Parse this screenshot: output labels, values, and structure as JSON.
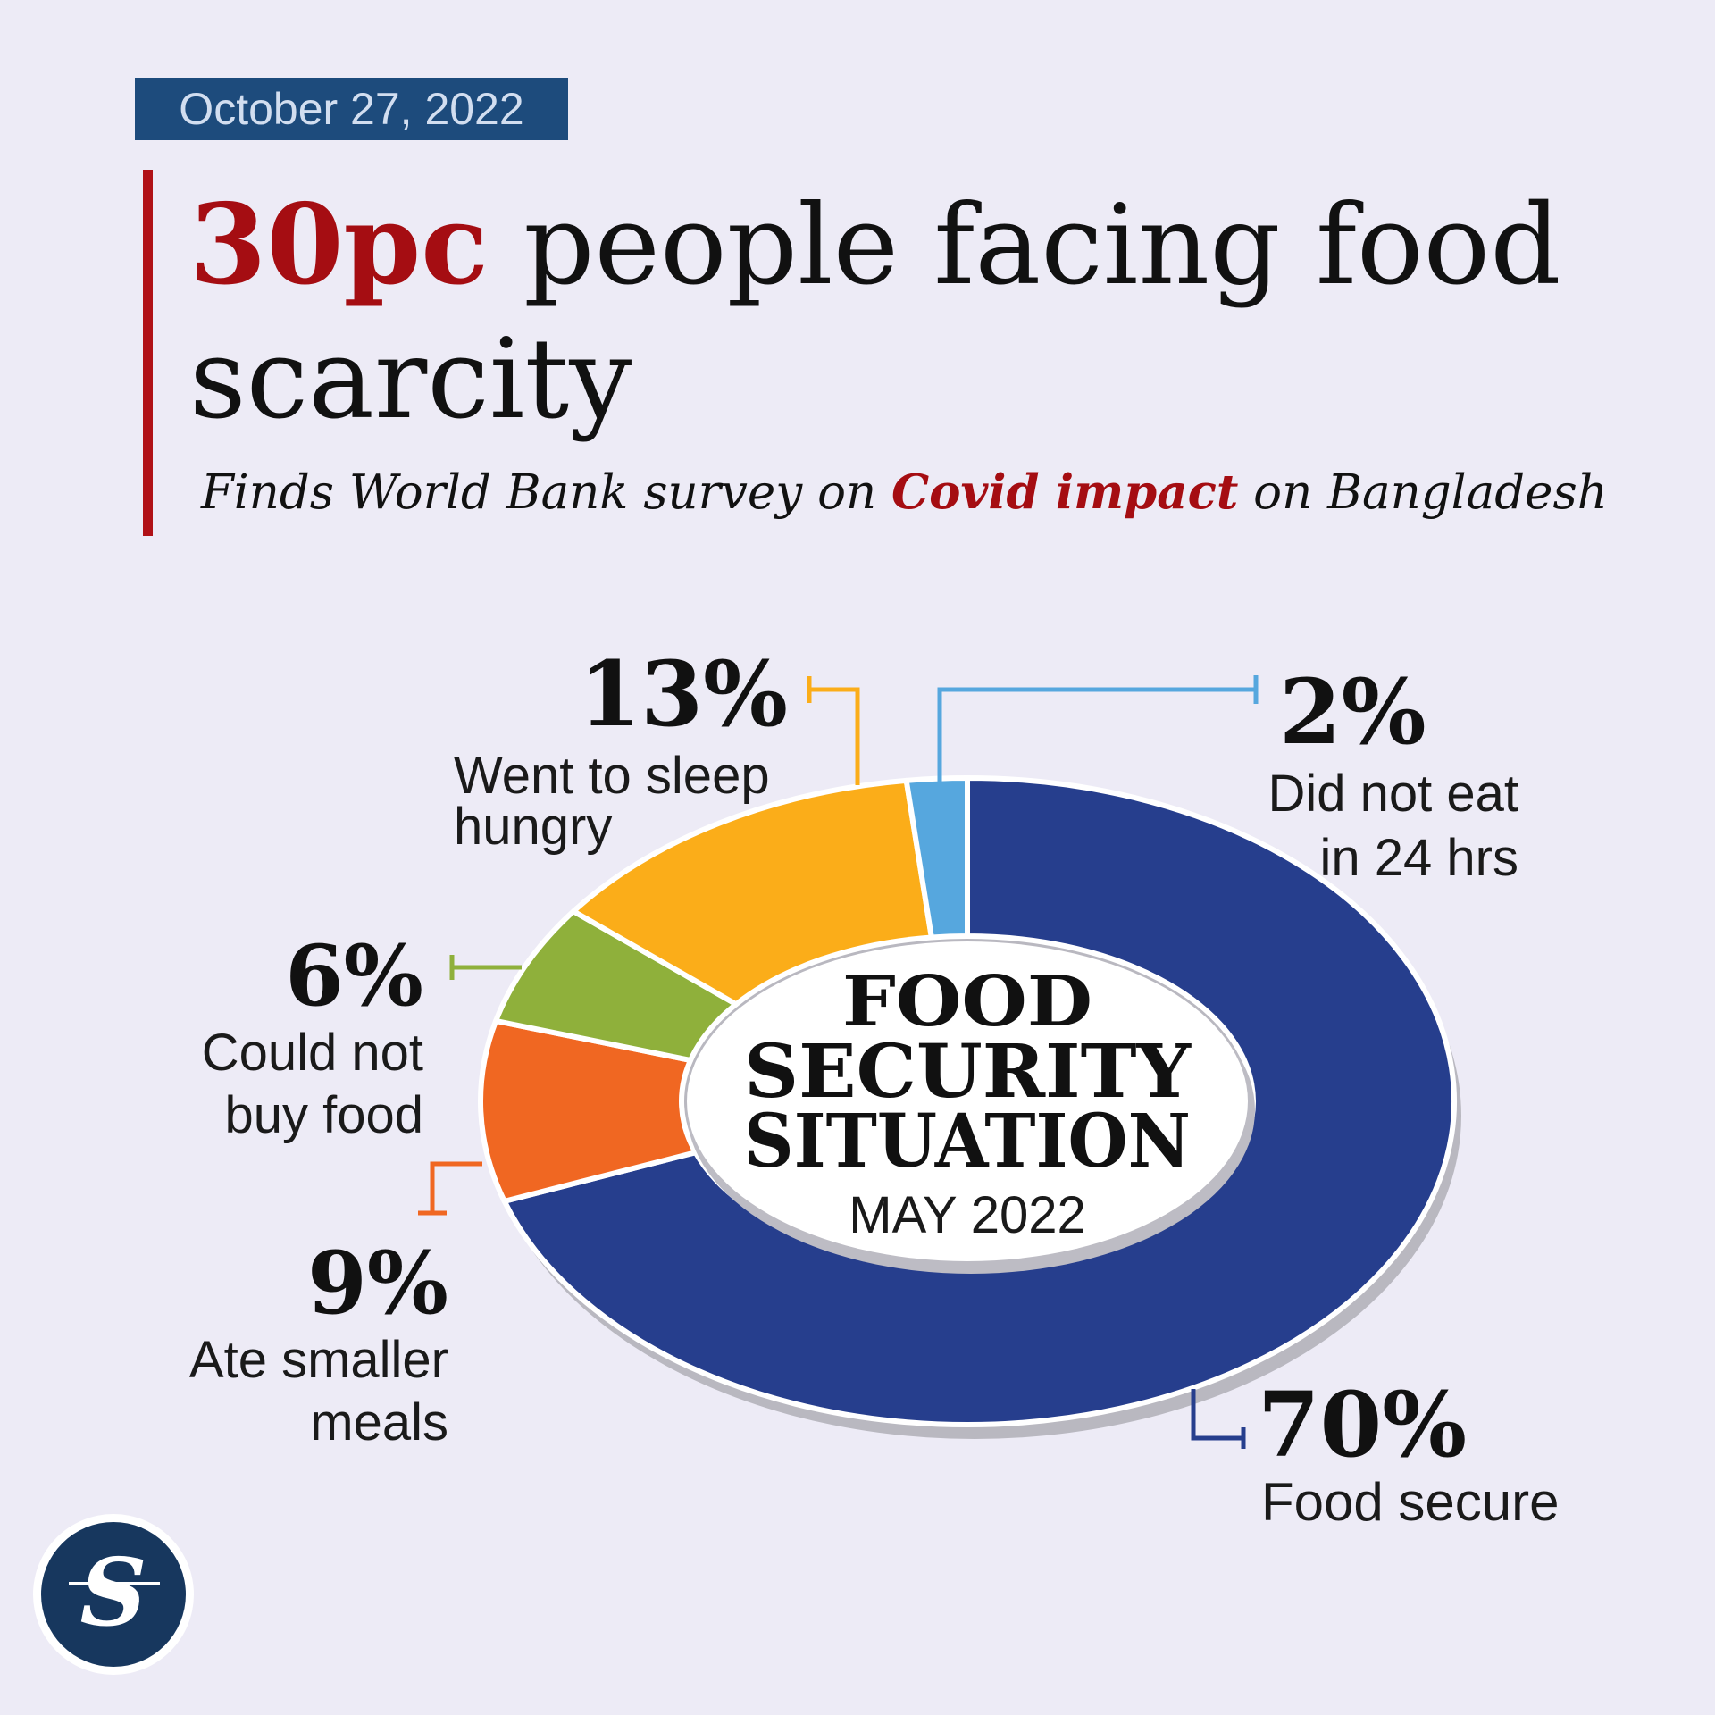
{
  "header": {
    "date": "October 27, 2022",
    "headline_highlight": "30pc",
    "headline_rest": " people facing food scarcity",
    "subhead_before": "Finds World Bank survey on ",
    "subhead_highlight": "Covid impact",
    "subhead_after": " on Bangladesh"
  },
  "colors": {
    "accent_red": "#a50d12",
    "badge_blue": "#1d4b7c",
    "food_secure": "#263e8d",
    "did_not_eat": "#56a7de",
    "went_to_sleep_hungry": "#fbad19",
    "could_not_buy_food": "#8fb03b",
    "ate_smaller_meals": "#f06722"
  },
  "chart_data": {
    "type": "pie",
    "donut": true,
    "title": "FOOD SECURITY SITUATION",
    "subtitle": "MAY 2022",
    "center_title_lines": [
      "FOOD",
      "SECURITY",
      "SITUATION"
    ],
    "slices": [
      {
        "key": "food_secure",
        "label": "Food secure",
        "label_lines": [
          "Food secure"
        ],
        "value": 70,
        "value_label": "70%",
        "color": "#263e8d"
      },
      {
        "key": "ate_smaller_meals",
        "label": "Ate smaller meals",
        "label_lines": [
          "Ate smaller",
          "meals"
        ],
        "value": 9,
        "value_label": "9%",
        "color": "#f06722"
      },
      {
        "key": "could_not_buy_food",
        "label": "Could not buy food",
        "label_lines": [
          "Could not",
          "buy food"
        ],
        "value": 6,
        "value_label": "6%",
        "color": "#8fb03b"
      },
      {
        "key": "went_to_sleep_hungry",
        "label": "Went to sleep hungry",
        "label_lines": [
          "Went to sleep",
          "hungry"
        ],
        "value": 13,
        "value_label": "13%",
        "color": "#fbad19"
      },
      {
        "key": "did_not_eat",
        "label": "Did not eat in 24 hrs",
        "label_lines": [
          "Did not eat",
          "in 24 hrs"
        ],
        "value": 2,
        "value_label": "2%",
        "color": "#56a7de"
      }
    ]
  },
  "logo": {
    "icon": "star-s-logo-icon",
    "glyph": "S"
  }
}
